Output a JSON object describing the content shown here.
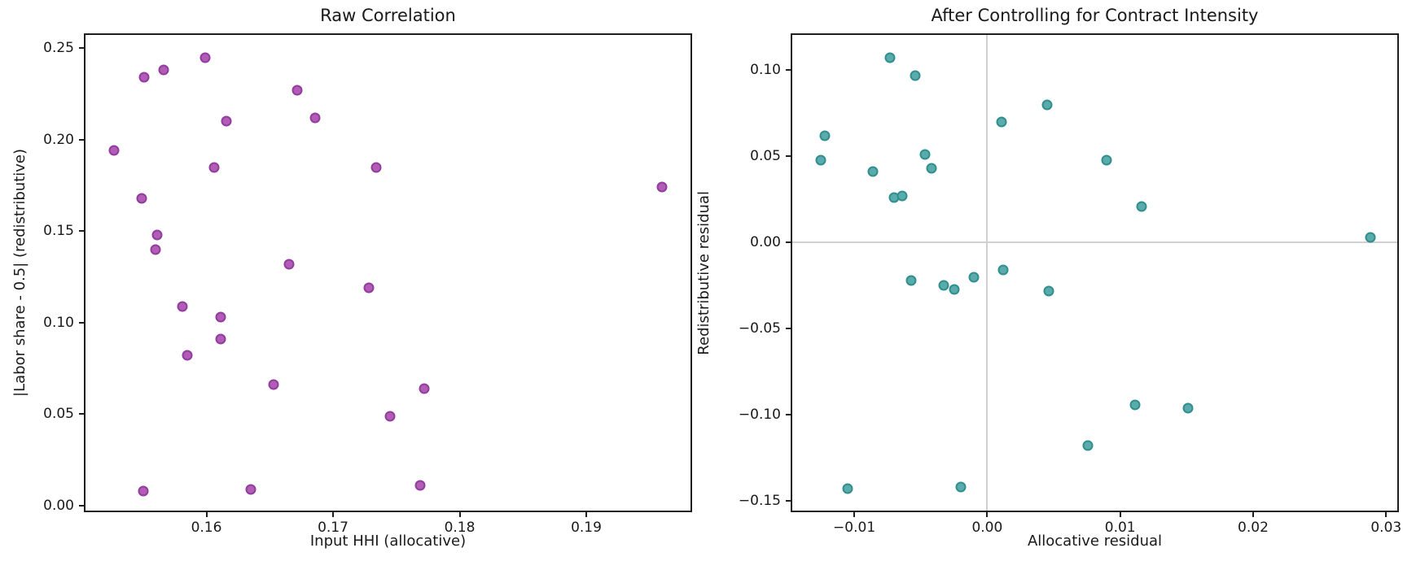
{
  "figure": {
    "background": "#ffffff",
    "text_color": "#1a1a1a",
    "spine_color": "#1f1f1f",
    "ref_line_color": "#d0d0d0"
  },
  "chart_data": [
    {
      "type": "scatter",
      "title": "Raw Correlation",
      "xlabel": "Input HHI (allocative)",
      "ylabel": "|Labor share - 0.5| (redistributive)",
      "xlim": [
        0.15045,
        0.19823
      ],
      "ylim": [
        -0.00267,
        0.25733
      ],
      "grid": false,
      "xticks": [
        0.16,
        0.17,
        0.18,
        0.19
      ],
      "xtick_labels": [
        "0.16",
        "0.17",
        "0.18",
        "0.19"
      ],
      "yticks": [
        0.0,
        0.05,
        0.1,
        0.15,
        0.2,
        0.25
      ],
      "ytick_labels": [
        "0.00",
        "0.05",
        "0.10",
        "0.15",
        "0.20",
        "0.25"
      ],
      "marker_fill": "#b25cb5",
      "marker_edge": "#913d9e",
      "points": [
        [
          0.1527,
          0.194
        ],
        [
          0.1551,
          0.234
        ],
        [
          0.1566,
          0.238
        ],
        [
          0.1599,
          0.245
        ],
        [
          0.1549,
          0.168
        ],
        [
          0.1561,
          0.148
        ],
        [
          0.156,
          0.14
        ],
        [
          0.155,
          0.008
        ],
        [
          0.1581,
          0.109
        ],
        [
          0.1585,
          0.082
        ],
        [
          0.1606,
          0.185
        ],
        [
          0.1616,
          0.21
        ],
        [
          0.1611,
          0.103
        ],
        [
          0.1611,
          0.091
        ],
        [
          0.1635,
          0.009
        ],
        [
          0.1653,
          0.066
        ],
        [
          0.1665,
          0.132
        ],
        [
          0.1672,
          0.227
        ],
        [
          0.1686,
          0.212
        ],
        [
          0.1728,
          0.119
        ],
        [
          0.1734,
          0.185
        ],
        [
          0.1745,
          0.049
        ],
        [
          0.1772,
          0.064
        ],
        [
          0.1769,
          0.011
        ],
        [
          0.196,
          0.174
        ]
      ]
    },
    {
      "type": "scatter",
      "title": "After Controlling for Contract Intensity",
      "xlabel": "Allocative residual",
      "ylabel": "Redistributive residual",
      "xlim": [
        -0.01466,
        0.03084
      ],
      "ylim": [
        -0.1555,
        0.1204
      ],
      "grid": false,
      "ref_lines": {
        "x": 0.0,
        "y": 0.0
      },
      "xticks": [
        -0.01,
        0.0,
        0.01,
        0.02,
        0.03
      ],
      "xtick_labels": [
        "−0.01",
        "0.00",
        "0.01",
        "0.02",
        "0.03"
      ],
      "yticks": [
        0.1,
        0.05,
        0.0,
        -0.05,
        -0.1,
        -0.15
      ],
      "ytick_labels": [
        "0.10",
        "0.05",
        "0.00",
        "−0.05",
        "−0.10",
        "−0.15"
      ],
      "marker_fill": "#5aacac",
      "marker_edge": "#318e8e",
      "points": [
        [
          -0.0073,
          0.107
        ],
        [
          -0.0054,
          0.097
        ],
        [
          0.0045,
          0.08
        ],
        [
          0.0011,
          0.07
        ],
        [
          -0.0122,
          0.062
        ],
        [
          -0.0125,
          0.048
        ],
        [
          -0.0047,
          0.051
        ],
        [
          -0.0086,
          0.041
        ],
        [
          -0.0042,
          0.043
        ],
        [
          0.009,
          0.048
        ],
        [
          -0.007,
          0.026
        ],
        [
          -0.0064,
          0.027
        ],
        [
          0.0116,
          0.021
        ],
        [
          0.0288,
          0.003
        ],
        [
          0.0012,
          -0.016
        ],
        [
          -0.001,
          -0.02
        ],
        [
          -0.0057,
          -0.022
        ],
        [
          -0.0033,
          -0.025
        ],
        [
          -0.0025,
          -0.027
        ],
        [
          0.0046,
          -0.028
        ],
        [
          0.0111,
          -0.094
        ],
        [
          0.0151,
          -0.096
        ],
        [
          0.0076,
          -0.118
        ],
        [
          -0.0105,
          -0.143
        ],
        [
          -0.002,
          -0.142
        ]
      ]
    }
  ]
}
